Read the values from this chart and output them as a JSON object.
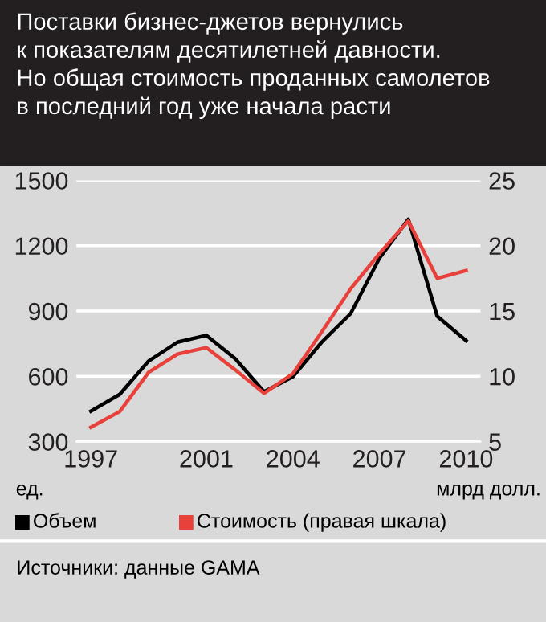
{
  "chart_data": {
    "type": "line",
    "title": "Поставки бизнес-джетов вернулись\nк показателям десятилетней давности.\nНо общая стоимость проданных самолетов\nв последний год уже начала расти",
    "x": [
      1997,
      1998,
      1999,
      2000,
      2001,
      2002,
      2003,
      2004,
      2005,
      2006,
      2007,
      2008,
      2009,
      2010
    ],
    "series": [
      {
        "name": "Объем",
        "color": "#000000",
        "values": [
          440,
          517,
          670,
          757,
          788,
          681,
          529,
          598,
          757,
          888,
          1143,
          1321,
          876,
          764
        ]
      },
      {
        "name": "Стоимость (правая шкала)",
        "color": "#e8403a",
        "axis": "y2",
        "values": [
          6.1,
          7.3,
          10.3,
          11.7,
          12.2,
          10.5,
          8.7,
          10.2,
          13.4,
          16.7,
          19.4,
          21.9,
          17.5,
          18.1
        ]
      }
    ],
    "ylabel": "ед.",
    "y2label": "млрд долл.",
    "xlim": [
      1996.5,
      2010.5
    ],
    "xticks": [
      1997,
      2001,
      2004,
      2007,
      2010
    ],
    "ylim": [
      300,
      1500
    ],
    "yticks": [
      300,
      600,
      900,
      1200,
      1500
    ],
    "y2lim": [
      5,
      25
    ],
    "y2ticks": [
      5,
      10,
      15,
      20,
      25
    ],
    "grid": "y",
    "legend": "bottom",
    "marker": "none",
    "line_style": "solid",
    "annotations": [
      "Источники: данные GAMA"
    ]
  }
}
